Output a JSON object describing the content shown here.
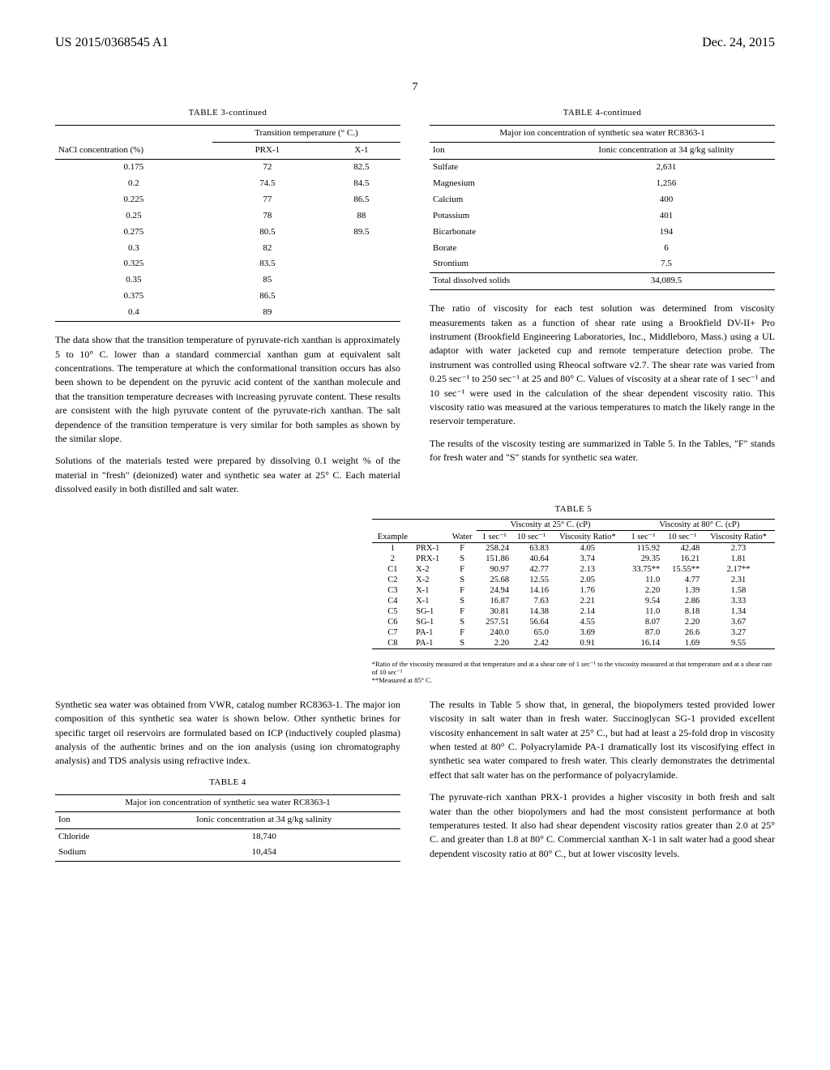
{
  "hdr": {
    "left": "US 2015/0368545 A1",
    "right": "Dec. 24, 2015"
  },
  "pg": "7",
  "t3": {
    "title": "TABLE 3-continued",
    "h1": "",
    "h2": "Transition temperature (° C.)",
    "c1": "NaCl concentration (%)",
    "c2": "PRX-1",
    "c3": "X-1",
    "rows": [
      [
        "0.175",
        "72",
        "82.5"
      ],
      [
        "0.2",
        "74.5",
        "84.5"
      ],
      [
        "0.225",
        "77",
        "86.5"
      ],
      [
        "0.25",
        "78",
        "88"
      ],
      [
        "0.275",
        "80.5",
        "89.5"
      ],
      [
        "0.3",
        "82",
        ""
      ],
      [
        "0.325",
        "83.5",
        ""
      ],
      [
        "0.35",
        "85",
        ""
      ],
      [
        "0.375",
        "86.5",
        ""
      ],
      [
        "0.4",
        "89",
        ""
      ]
    ]
  },
  "p1": "The data show that the transition temperature of pyruvate-rich xanthan is approximately 5 to 10° C. lower than a standard commercial xanthan gum at equivalent salt concentrations. The temperature at which the conformational transition occurs has also been shown to be dependent on the pyruvic acid content of the xanthan molecule and that the transition temperature decreases with increasing pyruvate content. These results are consistent with the high pyruvate content of the pyruvate-rich xanthan. The salt dependence of the transition temperature is very similar for both samples as shown by the similar slope.",
  "p2": "Solutions of the materials tested were prepared by dissolving 0.1 weight % of the material in \"fresh\" (deionized) water and synthetic sea water at 25° C. Each material dissolved easily in both distilled and salt water.",
  "p3": "Synthetic sea water was obtained from VWR, catalog number RC8363-1. The major ion composition of this synthetic sea water is shown below. Other synthetic brines for specific target oil reservoirs are formulated based on ICP (inductively coupled plasma) analysis of the authentic brines and on the ion analysis (using ion chromatography analysis) and TDS analysis using refractive index.",
  "t4a": {
    "title": "TABLE 4",
    "cap": "Major ion concentration of synthetic sea water RC8363-1",
    "h1": "Ion",
    "h2": "Ionic concentration at 34 g/kg salinity",
    "rows": [
      [
        "Chloride",
        "18,740"
      ],
      [
        "Sodium",
        "10,454"
      ]
    ]
  },
  "t4b": {
    "title": "TABLE 4-continued",
    "cap": "Major ion concentration of synthetic sea water RC8363-1",
    "h1": "Ion",
    "h2": "Ionic concentration at 34 g/kg salinity",
    "rows": [
      [
        "Sulfate",
        "2,631"
      ],
      [
        "Magnesium",
        "1,256"
      ],
      [
        "Calcium",
        "400"
      ],
      [
        "Potassium",
        "401"
      ],
      [
        "Bicarbonate",
        "194"
      ],
      [
        "Borate",
        "6"
      ],
      [
        "Strontium",
        "7.5"
      ]
    ],
    "totlabel": "Total dissolved solids",
    "totval": "34,089.5"
  },
  "p4": "The ratio of viscosity for each test solution was determined from viscosity measurements taken as a function of shear rate using a Brookfield DV-II+ Pro instrument (Brookfield Engineering Laboratories, Inc., Middleboro, Mass.) using a UL adaptor with water jacketed cup and remote temperature detection probe. The instrument was controlled using Rheocal software v2.7. The shear rate was varied from 0.25 sec⁻¹ to 250 sec⁻¹ at 25 and 80° C. Values of viscosity at a shear rate of 1 sec⁻¹ and 10 sec⁻¹ were used in the calculation of the shear dependent viscosity ratio. This viscosity ratio was measured at the various temperatures to match the likely range in the reservoir temperature.",
  "p5": "The results of the viscosity testing are summarized in Table 5. In the Tables, \"F\" stands for fresh water and \"S\" stands for synthetic sea water.",
  "t5": {
    "title": "TABLE 5",
    "g1": "Viscosity at 25° C. (cP)",
    "g2": "Viscosity at 80° C. (cP)",
    "h": [
      "Example",
      "",
      "Water",
      "1 sec⁻¹",
      "10 sec⁻¹",
      "Viscosity Ratio*",
      "1 sec⁻¹",
      "10 sec⁻¹",
      "Viscosity Ratio*"
    ],
    "rows": [
      [
        "1",
        "PRX-1",
        "F",
        "258.24",
        "63.83",
        "4.05",
        "115.92",
        "42.48",
        "2.73"
      ],
      [
        "2",
        "PRX-1",
        "S",
        "151.86",
        "40.64",
        "3.74",
        "29.35",
        "16.21",
        "1.81"
      ],
      [
        "C1",
        "X-2",
        "F",
        "90.97",
        "42.77",
        "2.13",
        "33.75**",
        "15.55**",
        "2.17**"
      ],
      [
        "C2",
        "X-2",
        "S",
        "25.68",
        "12.55",
        "2.05",
        "11.0",
        "4.77",
        "2.31"
      ],
      [
        "C3",
        "X-1",
        "F",
        "24.94",
        "14.16",
        "1.76",
        "2.20",
        "1.39",
        "1.58"
      ],
      [
        "C4",
        "X-1",
        "S",
        "16.87",
        "7.63",
        "2.21",
        "9.54",
        "2.86",
        "3.33"
      ],
      [
        "C5",
        "SG-1",
        "F",
        "30.81",
        "14.38",
        "2.14",
        "11.0",
        "8.18",
        "1.34"
      ],
      [
        "C6",
        "SG-1",
        "S",
        "257.51",
        "56.64",
        "4.55",
        "8.07",
        "2.20",
        "3.67"
      ],
      [
        "C7",
        "PA-1",
        "F",
        "240.0",
        "65.0",
        "3.69",
        "87.0",
        "26.6",
        "3.27"
      ],
      [
        "C8",
        "PA-1",
        "S",
        "2.20",
        "2.42",
        "0.91",
        "16.14",
        "1.69",
        "9.55"
      ]
    ],
    "fn1": "*Ratio of the viscosity measured at that temperature and at a shear rate of 1 sec⁻¹ to the viscosity measured at that temperature and at a shear rate of 10 sec⁻¹",
    "fn2": "**Measured at 85° C."
  },
  "p6": "The results in Table 5 show that, in general, the biopolymers tested provided lower viscosity in salt water than in fresh water. Succinoglycan SG-1 provided excellent viscosity enhancement in salt water at 25° C., but had at least a 25-fold drop in viscosity when tested at 80° C. Polyacrylamide PA-1 dramatically lost its viscosifying effect in synthetic sea water compared to fresh water. This clearly demonstrates the detrimental effect that salt water has on the performance of polyacrylamide.",
  "p7": "The pyruvate-rich xanthan PRX-1 provides a higher viscosity in both fresh and salt water than the other biopolymers and had the most consistent performance at both temperatures tested. It also had shear dependent viscosity ratios greater than 2.0 at 25° C. and greater than 1.8 at 80° C. Commercial xanthan X-1 in salt water had a good shear dependent viscosity ratio at 80° C., but at lower viscosity levels."
}
